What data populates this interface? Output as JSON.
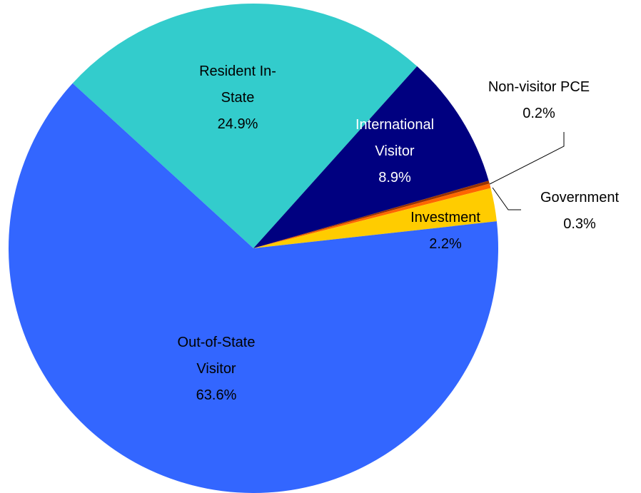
{
  "chart_data": {
    "type": "pie",
    "categories": [
      "Resident In-State",
      "International Visitor",
      "Non-visitor PCE",
      "Government",
      "Investment",
      "Out-of-State Visitor"
    ],
    "values": [
      24.9,
      8.9,
      0.2,
      0.3,
      2.2,
      63.6
    ],
    "value_labels": [
      "24.9%",
      "8.9%",
      "0.2%",
      "0.3%",
      "2.2%",
      "63.6%"
    ],
    "colors": [
      "#33cccc",
      "#000080",
      "#993300",
      "#ff6600",
      "#ffcc00",
      "#3366ff"
    ]
  }
}
